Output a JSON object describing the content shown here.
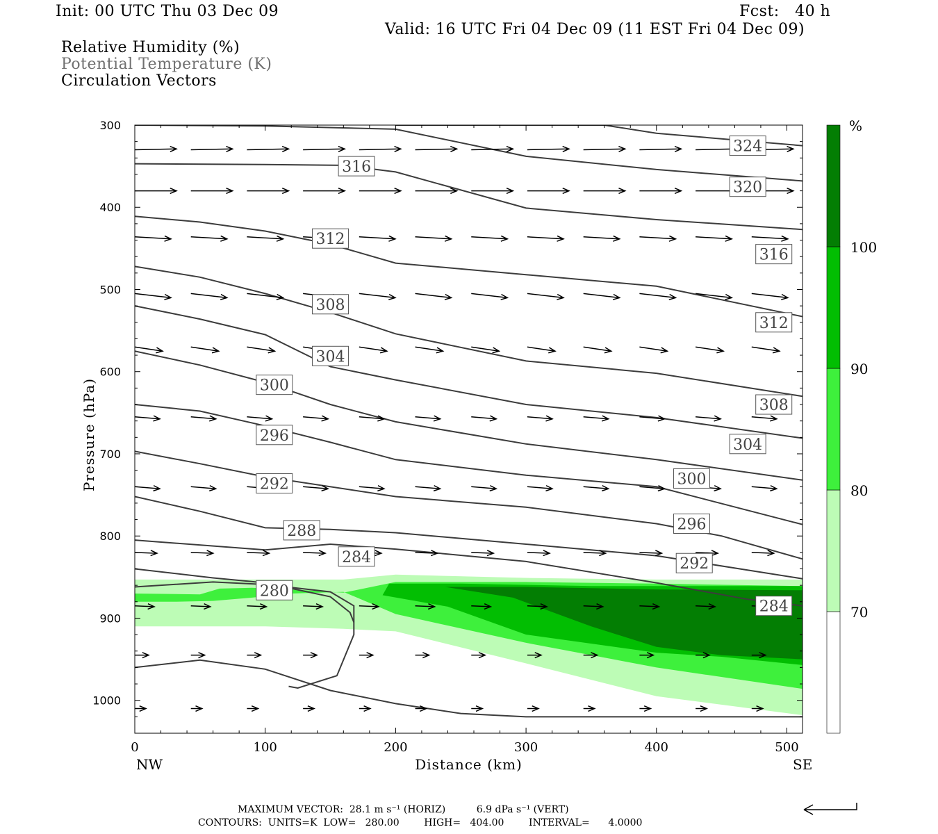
{
  "header": {
    "init": "Init: 00 UTC Thu 03 Dec 09",
    "fcst": "Fcst:   40 h",
    "valid": "Valid: 16 UTC Fri 04 Dec 09 (11 EST Fri 04 Dec 09)",
    "fields": [
      "Relative Humidity (%)",
      "Potential Temperature (K)",
      "Circulation Vectors"
    ]
  },
  "footer": {
    "max_vector": "MAXIMUM VECTOR:  28.1 m s⁻¹ (HORIZ)          6.9 dPa s⁻¹ (VERT)",
    "contours": "CONTOURS:  UNITS=K  LOW=   280.00        HIGH=   404.00        INTERVAL=      4.0000"
  },
  "colors": {
    "rh_70_80": "#bdfcb6",
    "rh_80_90": "#3ef03c",
    "rh_90_100": "#02be02",
    "rh_100": "#037e03",
    "contour": "#3c3c3c",
    "title_gray": "#707070"
  },
  "chart_data": {
    "type": "contour",
    "xlabel": "Distance (km)",
    "ylabel": "Pressure (hPa)",
    "xlim": [
      0,
      512
    ],
    "ylim": [
      300,
      1040
    ],
    "y_reversed": true,
    "x_ticks": [
      0,
      100,
      200,
      300,
      400,
      500
    ],
    "y_ticks": [
      300,
      400,
      500,
      600,
      700,
      800,
      900,
      1000
    ],
    "x_end_labels": {
      "left": "NW",
      "right": "SE"
    },
    "colorbar": {
      "unit": "%",
      "levels": [
        70,
        80,
        90,
        100
      ],
      "colors": [
        "#ffffff",
        "#bdfcb6",
        "#3ef03c",
        "#02be02",
        "#037e03"
      ]
    },
    "rh_bands": [
      {
        "level": 70,
        "color": "#bdfcb6",
        "top": [
          [
            0,
            853
          ],
          [
            100,
            853
          ],
          [
            160,
            853
          ],
          [
            200,
            847
          ],
          [
            300,
            851
          ],
          [
            400,
            853
          ],
          [
            512,
            853
          ]
        ],
        "bottom": [
          [
            0,
            910
          ],
          [
            100,
            910
          ],
          [
            160,
            913
          ],
          [
            200,
            916
          ],
          [
            300,
            955
          ],
          [
            400,
            995
          ],
          [
            512,
            1018
          ]
        ]
      },
      {
        "level": 80,
        "color": "#3ef03c",
        "top": [
          [
            0,
            870
          ],
          [
            50,
            871
          ],
          [
            65,
            864
          ],
          [
            90,
            863
          ],
          [
            130,
            866
          ],
          [
            160,
            869
          ],
          [
            200,
            856
          ],
          [
            300,
            856
          ],
          [
            400,
            858
          ],
          [
            512,
            861
          ]
        ],
        "bottom": [
          [
            0,
            880
          ],
          [
            30,
            880
          ],
          [
            60,
            879
          ],
          [
            90,
            875
          ],
          [
            120,
            870
          ],
          [
            160,
            868
          ],
          [
            200,
            895
          ],
          [
            300,
            930
          ],
          [
            400,
            960
          ],
          [
            512,
            986
          ]
        ]
      },
      {
        "level": 90,
        "color": "#02be02",
        "top": [
          [
            190,
            872
          ],
          [
            195,
            858
          ],
          [
            250,
            858
          ],
          [
            350,
            861
          ],
          [
            450,
            861
          ],
          [
            512,
            861
          ]
        ],
        "bottom": [
          [
            190,
            872
          ],
          [
            240,
            886
          ],
          [
            300,
            920
          ],
          [
            400,
            942
          ],
          [
            450,
            947
          ],
          [
            512,
            957
          ]
        ]
      },
      {
        "level": 100,
        "color": "#037e03",
        "top": [
          [
            238,
            862
          ],
          [
            300,
            862
          ],
          [
            400,
            865
          ],
          [
            512,
            866
          ]
        ],
        "bottom": [
          [
            238,
            862
          ],
          [
            290,
            875
          ],
          [
            350,
            910
          ],
          [
            400,
            935
          ],
          [
            450,
            945
          ],
          [
            512,
            950
          ]
        ]
      }
    ],
    "theta_contours": [
      {
        "value": 280,
        "points": [
          [
            0,
            862
          ],
          [
            60,
            856
          ],
          [
            100,
            859
          ],
          [
            150,
            868
          ],
          [
            168,
            885
          ],
          [
            168,
            920
          ],
          [
            155,
            970
          ],
          [
            125,
            985
          ],
          [
            118,
            983
          ]
        ]
      },
      {
        "value": 284,
        "points": [
          [
            0,
            840
          ],
          [
            60,
            851
          ],
          [
            100,
            857
          ],
          [
            150,
            874
          ],
          [
            165,
            893
          ],
          [
            168,
            905
          ]
        ]
      },
      {
        "value": 284,
        "points": [
          [
            0,
            805
          ],
          [
            100,
            817
          ],
          [
            150,
            810
          ],
          [
            200,
            816
          ],
          [
            300,
            831
          ],
          [
            400,
            857
          ],
          [
            470,
            877
          ],
          [
            512,
            885
          ]
        ]
      },
      {
        "value": 288,
        "points": [
          [
            0,
            752
          ],
          [
            50,
            770
          ],
          [
            100,
            790
          ],
          [
            150,
            792
          ],
          [
            200,
            796
          ],
          [
            300,
            810
          ],
          [
            400,
            824
          ],
          [
            512,
            852
          ]
        ]
      },
      {
        "value": 292,
        "points": [
          [
            0,
            697
          ],
          [
            50,
            712
          ],
          [
            100,
            728
          ],
          [
            200,
            752
          ],
          [
            300,
            765
          ],
          [
            400,
            785
          ],
          [
            450,
            800
          ],
          [
            512,
            828
          ]
        ]
      },
      {
        "value": 296,
        "points": [
          [
            0,
            640
          ],
          [
            50,
            648
          ],
          [
            100,
            666
          ],
          [
            150,
            686
          ],
          [
            200,
            707
          ],
          [
            300,
            726
          ],
          [
            400,
            740
          ],
          [
            512,
            786
          ]
        ]
      },
      {
        "value": 300,
        "points": [
          [
            0,
            575
          ],
          [
            50,
            592
          ],
          [
            100,
            613
          ],
          [
            150,
            640
          ],
          [
            200,
            661
          ],
          [
            300,
            688
          ],
          [
            400,
            707
          ],
          [
            512,
            732
          ]
        ]
      },
      {
        "value": 304,
        "points": [
          [
            0,
            520
          ],
          [
            50,
            536
          ],
          [
            100,
            555
          ],
          [
            150,
            594
          ],
          [
            200,
            610
          ],
          [
            300,
            640
          ],
          [
            400,
            656
          ],
          [
            512,
            681
          ]
        ]
      },
      {
        "value": 308,
        "points": [
          [
            0,
            472
          ],
          [
            50,
            485
          ],
          [
            100,
            505
          ],
          [
            150,
            528
          ],
          [
            200,
            554
          ],
          [
            300,
            587
          ],
          [
            400,
            602
          ],
          [
            512,
            630
          ]
        ]
      },
      {
        "value": 312,
        "points": [
          [
            0,
            411
          ],
          [
            50,
            418
          ],
          [
            100,
            429
          ],
          [
            150,
            445
          ],
          [
            200,
            468
          ],
          [
            300,
            482
          ],
          [
            400,
            496
          ],
          [
            512,
            533
          ]
        ]
      },
      {
        "value": 316,
        "points": [
          [
            0,
            347
          ],
          [
            100,
            348
          ],
          [
            160,
            349
          ],
          [
            200,
            357
          ],
          [
            300,
            401
          ],
          [
            400,
            415
          ],
          [
            512,
            427
          ]
        ]
      },
      {
        "value": 320,
        "points": [
          [
            0,
            300
          ],
          [
            100,
            301
          ],
          [
            200,
            305
          ],
          [
            300,
            338
          ],
          [
            400,
            354
          ],
          [
            512,
            368
          ]
        ]
      },
      {
        "value": 324,
        "points": [
          [
            200,
            300
          ],
          [
            300,
            300
          ],
          [
            360,
            300
          ],
          [
            400,
            310
          ],
          [
            512,
            325
          ]
        ]
      },
      {
        "value": 284,
        "points": [
          [
            0,
            960
          ],
          [
            50,
            951
          ],
          [
            100,
            962
          ],
          [
            150,
            988
          ],
          [
            200,
            1004
          ],
          [
            250,
            1016
          ],
          [
            300,
            1020
          ],
          [
            512,
            1020
          ]
        ]
      }
    ],
    "contour_labels": [
      {
        "text": "324",
        "x": 470,
        "y": 325
      },
      {
        "text": "316",
        "x": 170,
        "y": 350
      },
      {
        "text": "320",
        "x": 470,
        "y": 375
      },
      {
        "text": "312",
        "x": 150,
        "y": 438
      },
      {
        "text": "316",
        "x": 490,
        "y": 457
      },
      {
        "text": "308",
        "x": 150,
        "y": 518
      },
      {
        "text": "312",
        "x": 490,
        "y": 540
      },
      {
        "text": "304",
        "x": 150,
        "y": 581
      },
      {
        "text": "300",
        "x": 107,
        "y": 616
      },
      {
        "text": "308",
        "x": 490,
        "y": 640
      },
      {
        "text": "304",
        "x": 470,
        "y": 688
      },
      {
        "text": "296",
        "x": 107,
        "y": 677
      },
      {
        "text": "300",
        "x": 427,
        "y": 730
      },
      {
        "text": "292",
        "x": 107,
        "y": 736
      },
      {
        "text": "296",
        "x": 427,
        "y": 785
      },
      {
        "text": "288",
        "x": 128,
        "y": 793
      },
      {
        "text": "284",
        "x": 170,
        "y": 825
      },
      {
        "text": "292",
        "x": 429,
        "y": 833
      },
      {
        "text": "280",
        "x": 107,
        "y": 866
      },
      {
        "text": "284",
        "x": 490,
        "y": 885
      }
    ],
    "vector_rows": [
      {
        "p": 330,
        "x0": 0,
        "step": 43,
        "u": 0.3,
        "w": -0.02
      },
      {
        "p": 380,
        "x0": 0,
        "step": 43,
        "u": 0.3,
        "w": 0.0
      },
      {
        "p": 436,
        "x0": 0,
        "step": 43,
        "u": 0.26,
        "w": 0.05
      },
      {
        "p": 505,
        "x0": 0,
        "step": 43,
        "u": 0.26,
        "w": 0.1
      },
      {
        "p": 570,
        "x0": 0,
        "step": 43,
        "u": 0.2,
        "w": 0.1
      },
      {
        "p": 655,
        "x0": 0,
        "step": 43,
        "u": 0.18,
        "w": 0.05
      },
      {
        "p": 740,
        "x0": 0,
        "step": 43,
        "u": 0.18,
        "w": 0.05
      },
      {
        "p": 820,
        "x0": 0,
        "step": 43,
        "u": 0.16,
        "w": 0.02
      },
      {
        "p": 885,
        "x0": 0,
        "step": 43,
        "u": 0.14,
        "w": 0.02
      },
      {
        "p": 945,
        "x0": 0,
        "step": 43,
        "u": 0.1,
        "w": 0.0
      },
      {
        "p": 1010,
        "x0": 0,
        "step": 43,
        "u": 0.08,
        "w": 0.0
      }
    ]
  }
}
